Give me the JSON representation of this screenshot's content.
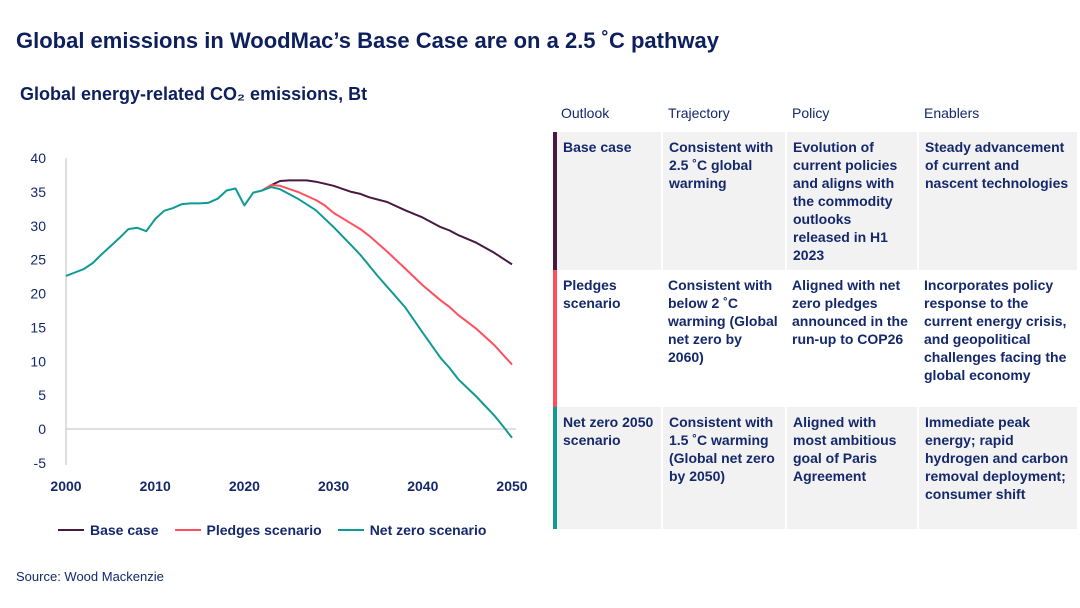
{
  "title": "Global emissions in WoodMac’s Base Case are on a 2.5 ˚C pathway",
  "subtitle": "Global energy-related CO₂ emissions, Bt",
  "source": "Source: Wood Mackenzie",
  "chart_data": {
    "type": "line",
    "title": "Global energy-related CO₂ emissions, Bt",
    "xlim": [
      2000,
      2050
    ],
    "ylim": [
      -5,
      40
    ],
    "xticks": [
      2000,
      2010,
      2020,
      2030,
      2040,
      2050
    ],
    "yticks": [
      -5,
      0,
      5,
      10,
      15,
      20,
      25,
      30,
      35,
      40
    ],
    "grid": false,
    "legend": "bottom",
    "series": [
      {
        "name": "Base case",
        "color": "#4a1942",
        "x": [
          2022,
          2023,
          2024,
          2025,
          2026,
          2027,
          2028,
          2029,
          2030,
          2032,
          2033,
          2034,
          2036,
          2038,
          2040,
          2042,
          2043,
          2044,
          2046,
          2048,
          2050
        ],
        "y": [
          35.2,
          36.0,
          36.6,
          36.7,
          36.7,
          36.7,
          36.5,
          36.2,
          35.9,
          35.0,
          34.7,
          34.2,
          33.5,
          32.3,
          31.2,
          29.8,
          29.3,
          28.6,
          27.5,
          26.0,
          24.3
        ]
      },
      {
        "name": "Pledges scenario",
        "color": "#ff4f5e",
        "x": [
          2022,
          2023,
          2024,
          2026,
          2028,
          2029,
          2030,
          2032,
          2033,
          2034,
          2036,
          2038,
          2040,
          2042,
          2043,
          2044,
          2046,
          2048,
          2050
        ],
        "y": [
          35.2,
          36.0,
          35.9,
          35.0,
          33.8,
          33.0,
          31.9,
          30.3,
          29.5,
          28.5,
          26.2,
          23.7,
          21.2,
          19.0,
          18.0,
          16.8,
          14.8,
          12.4,
          9.5
        ]
      },
      {
        "name": "Net zero scenario",
        "color": "#0f9a95",
        "x": [
          2000,
          2001,
          2002,
          2003,
          2004,
          2005,
          2006,
          2007,
          2008,
          2009,
          2010,
          2011,
          2012,
          2013,
          2014,
          2015,
          2016,
          2017,
          2018,
          2019,
          2020,
          2021,
          2022,
          2023,
          2024,
          2026,
          2028,
          2030,
          2032,
          2033,
          2035,
          2036,
          2038,
          2040,
          2042,
          2043,
          2044,
          2046,
          2048,
          2049,
          2050
        ],
        "y": [
          22.6,
          23.1,
          23.6,
          24.5,
          25.8,
          27.0,
          28.2,
          29.5,
          29.7,
          29.2,
          31.0,
          32.2,
          32.6,
          33.2,
          33.3,
          33.3,
          33.4,
          34.0,
          35.2,
          35.5,
          33.0,
          34.9,
          35.2,
          35.7,
          35.4,
          34.0,
          32.3,
          29.8,
          27.1,
          25.7,
          22.5,
          21.0,
          18.0,
          14.2,
          10.5,
          9.0,
          7.3,
          4.8,
          2.0,
          0.4,
          -1.3
        ]
      }
    ]
  },
  "table": {
    "headers": [
      "Outlook",
      "Trajectory",
      "Policy",
      "Enablers"
    ],
    "rows": [
      {
        "color": "#4a1942",
        "outlook": "Base case",
        "trajectory": "Consistent with 2.5 ˚C global warming",
        "policy": "Evolution of current policies and aligns with the commodity outlooks released in H1 2023",
        "enablers": "Steady advancement of current and nascent technologies"
      },
      {
        "color": "#ff4f5e",
        "outlook": "Pledges scenario",
        "trajectory": "Consistent with below 2 ˚C warming (Global net zero by 2060)",
        "policy": "Aligned with net zero pledges announced in the run-up to COP26",
        "enablers": "Incorporates policy response to the current energy crisis, and geopolitical challenges facing the global economy"
      },
      {
        "color": "#0f9a95",
        "outlook": "Net zero 2050 scenario",
        "trajectory": "Consistent with 1.5 ˚C warming (Global net zero by 2050)",
        "policy": "Aligned with most ambitious goal of Paris Agreement",
        "enablers": "Immediate peak energy; rapid hydrogen and carbon removal deployment; consumer shift"
      }
    ]
  }
}
